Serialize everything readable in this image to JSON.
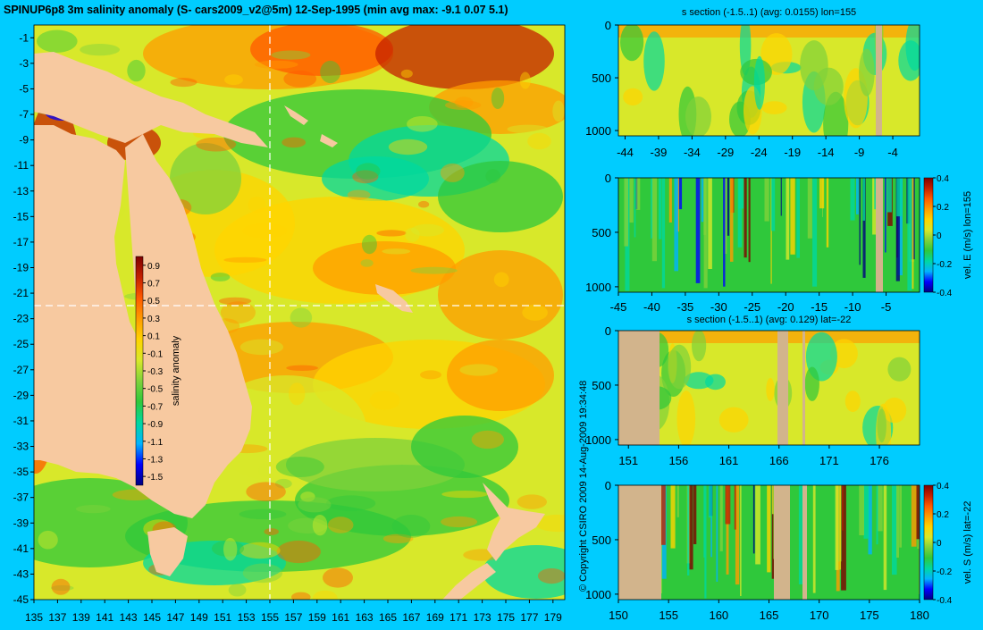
{
  "title": "SPINUP6p8 3m salinity anomaly (S- cars2009_v2@5m) 12-Sep-1995 (min avg max: -9.1 0.07 5.1)",
  "copyright": "© Copyright CSIRO 2009   14-Aug-2009 19:34:48",
  "colors": {
    "background": "#00ccff",
    "land": "#f7c9a0",
    "section_land": "#d2b48c",
    "colormap": [
      "#00007f",
      "#0000ff",
      "#00b4ff",
      "#00d8a0",
      "#2fc83b",
      "#7fd23b",
      "#d8e82a",
      "#ffd400",
      "#ff9c00",
      "#ff5a00",
      "#c42000",
      "#7f0000"
    ]
  },
  "chart_data": [
    {
      "type": "heatmap",
      "name": "map",
      "title": "SPINUP6p8 3m salinity anomaly (S- cars2009_v2@5m) 12-Sep-1995 (min avg max: -9.1 0.07 5.1)",
      "x_ticks": [
        "135",
        "137",
        "139",
        "141",
        "143",
        "145",
        "147",
        "149",
        "151",
        "153",
        "155",
        "157",
        "159",
        "161",
        "163",
        "165",
        "167",
        "169",
        "171",
        "173",
        "175",
        "177",
        "179"
      ],
      "y_ticks": [
        "-1",
        "-3",
        "-5",
        "-7",
        "-9",
        "-11",
        "-13",
        "-15",
        "-17",
        "-19",
        "-21",
        "-23",
        "-25",
        "-27",
        "-29",
        "-31",
        "-33",
        "-35",
        "-37",
        "-39",
        "-41",
        "-43",
        "-45"
      ],
      "xlim": [
        135,
        180
      ],
      "ylim": [
        -45,
        0
      ],
      "crosshair": {
        "lon": 155,
        "lat": -22
      },
      "colorbar": {
        "label": "salinity anomaly",
        "ticks": [
          "0.9",
          "0.7",
          "0.5",
          "0.3",
          "0.1",
          "-0.1",
          "-0.3",
          "-0.5",
          "-0.7",
          "-0.9",
          "-1.1",
          "-1.3",
          "-1.5"
        ],
        "range": [
          -1.6,
          1.0
        ]
      }
    },
    {
      "type": "heatmap",
      "name": "salinity-section-lon155",
      "title": "s section (-1.5..1) (avg: 0.0155) lon=155",
      "x_ticks": [
        "-44",
        "-39",
        "-34",
        "-29",
        "-24",
        "-19",
        "-14",
        "-9",
        "-4"
      ],
      "xlim": [
        -45,
        0
      ],
      "y_ticks": [
        "0",
        "500",
        "1000"
      ],
      "ylim": [
        0,
        1050
      ]
    },
    {
      "type": "heatmap",
      "name": "velocity-east-section-lon155",
      "title": "",
      "x_ticks": [
        "-45",
        "-40",
        "-35",
        "-30",
        "-25",
        "-20",
        "-15",
        "-10",
        "-5"
      ],
      "xlim": [
        -45,
        0
      ],
      "y_ticks": [
        "0",
        "500",
        "1000"
      ],
      "ylim": [
        0,
        1050
      ],
      "colorbar": {
        "label": "vel. E (m/s) lon=155",
        "ticks": [
          "0.4",
          "0.2",
          "0",
          "-0.2",
          "-0.4"
        ],
        "range": [
          -0.4,
          0.4
        ]
      }
    },
    {
      "type": "heatmap",
      "name": "salinity-section-lat-22",
      "title": "s section (-1.5..1) (avg: 0.129) lat=-22",
      "x_ticks": [
        "151",
        "156",
        "161",
        "166",
        "171",
        "176"
      ],
      "xlim": [
        150,
        180
      ],
      "y_ticks": [
        "0",
        "500",
        "1000"
      ],
      "ylim": [
        0,
        1050
      ]
    },
    {
      "type": "heatmap",
      "name": "velocity-south-section-lat-22",
      "title": "",
      "x_ticks": [
        "150",
        "155",
        "160",
        "165",
        "170",
        "175",
        "180"
      ],
      "xlim": [
        150,
        180
      ],
      "y_ticks": [
        "0",
        "500",
        "1000"
      ],
      "ylim": [
        0,
        1050
      ],
      "colorbar": {
        "label": "vel. S (m/s) lat=-22",
        "ticks": [
          "0.4",
          "0.2",
          "0",
          "-0.2",
          "-0.4"
        ],
        "range": [
          -0.4,
          0.4
        ]
      }
    }
  ]
}
